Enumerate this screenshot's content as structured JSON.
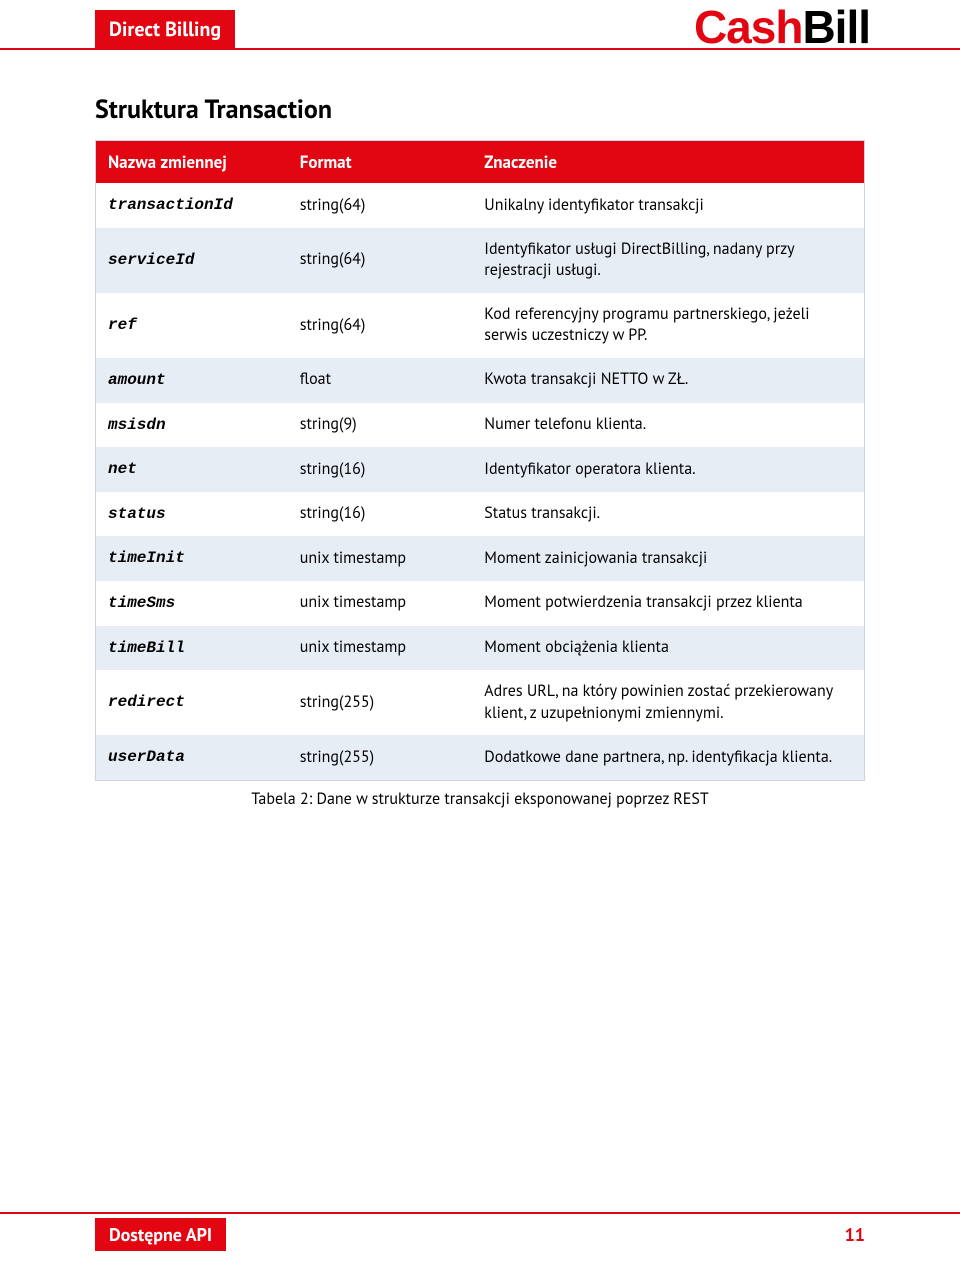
{
  "header": {
    "doc_title": "Direct Billing",
    "logo_cash": "Cash",
    "logo_bill": "Bill"
  },
  "colors": {
    "brand_red": "#e20613",
    "zebra_light": "#ffffff",
    "zebra_dark": "#e7edf5",
    "table_border": "#c9d4e4",
    "text": "#000000"
  },
  "section": {
    "heading": "Struktura Transaction"
  },
  "table": {
    "columns": {
      "name": "Nazwa zmiennej",
      "format": "Format",
      "meaning": "Znaczenie"
    },
    "rows": [
      {
        "name": "transactionId",
        "format": "string(64)",
        "meaning": "Unikalny identyfikator transakcji"
      },
      {
        "name": "serviceId",
        "format": "string(64)",
        "meaning": "Identyfikator usługi DirectBilling, nadany przy rejestracji usługi."
      },
      {
        "name": "ref",
        "format": "string(64)",
        "meaning": "Kod referencyjny programu partnerskiego, jeżeli serwis uczestniczy w PP."
      },
      {
        "name": "amount",
        "format": "float",
        "meaning": "Kwota transakcji NETTO w ZŁ."
      },
      {
        "name": "msisdn",
        "format": "string(9)",
        "meaning": "Numer telefonu klienta."
      },
      {
        "name": "net",
        "format": "string(16)",
        "meaning": "Identyfikator operatora klienta."
      },
      {
        "name": "status",
        "format": "string(16)",
        "meaning": "Status transakcji."
      },
      {
        "name": "timeInit",
        "format": "unix timestamp",
        "meaning": "Moment zainicjowania transakcji"
      },
      {
        "name": "timeSms",
        "format": "unix timestamp",
        "meaning": "Moment potwierdzenia transakcji przez klienta"
      },
      {
        "name": "timeBill",
        "format": "unix timestamp",
        "meaning": "Moment obciążenia klienta"
      },
      {
        "name": "redirect",
        "format": "string(255)",
        "meaning": "Adres URL, na który powinien zostać przekierowany klient, z uzupełnionymi zmiennymi."
      },
      {
        "name": "userData",
        "format": "string(255)",
        "meaning": "Dodatkowe dane partnera, np. identyfikacja klienta."
      }
    ],
    "caption": "Tabela 2: Dane w strukturze transakcji eksponowanej poprzez REST"
  },
  "footer": {
    "left": "Dostępne API",
    "page": "11"
  }
}
